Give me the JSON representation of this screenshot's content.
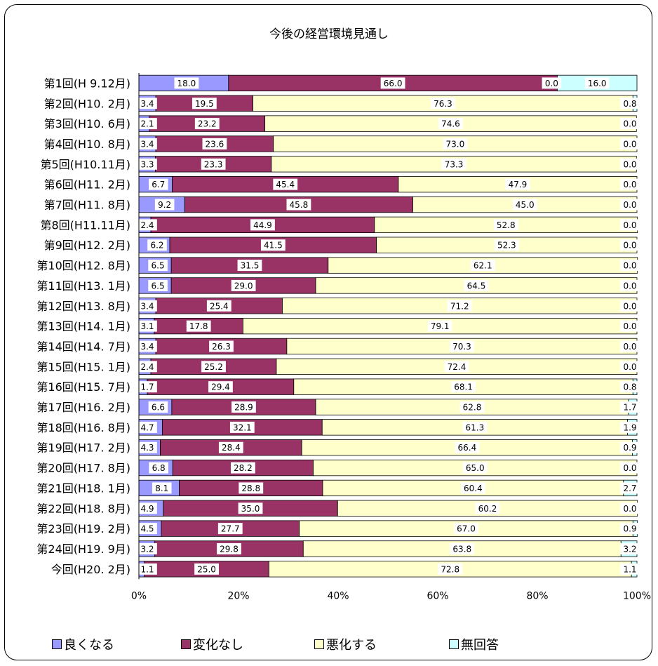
{
  "chart_data": {
    "type": "bar",
    "orientation": "horizontal",
    "stacked": "percent",
    "title": "今後の経営環境見通し",
    "categories": [
      "第1回(H 9.12月)",
      "第2回(H10. 2月)",
      "第3回(H10. 6月)",
      "第4回(H10. 8月)",
      "第5回(H10.11月)",
      "第6回(H11. 2月)",
      "第7回(H11. 8月)",
      "第8回(H11.11月)",
      "第9回(H12. 2月)",
      "第10回(H12. 8月)",
      "第11回(H13. 1月)",
      "第12回(H13. 8月)",
      "第13回(H14. 1月)",
      "第14回(H14. 7月)",
      "第15回(H15. 1月)",
      "第16回(H15. 7月)",
      "第17回(H16. 2月)",
      "第18回(H16. 8月)",
      "第19回(H17. 2月)",
      "第20回(H17. 8月)",
      "第21回(H18. 1月)",
      "第22回(H18. 8月)",
      "第23回(H19. 2月)",
      "第24回(H19. 9月)",
      "今回(H20. 2月)"
    ],
    "series": [
      {
        "name": "良くなる",
        "color": "#9999ff",
        "values": [
          18.0,
          3.4,
          2.1,
          3.4,
          3.3,
          6.7,
          9.2,
          2.4,
          6.2,
          6.5,
          6.5,
          3.4,
          3.1,
          3.4,
          2.4,
          1.7,
          6.6,
          4.7,
          4.3,
          6.8,
          8.1,
          4.9,
          4.5,
          3.2,
          1.1
        ]
      },
      {
        "name": "変化なし",
        "color": "#993366",
        "values": [
          66.0,
          19.5,
          23.2,
          23.6,
          23.3,
          45.4,
          45.8,
          44.9,
          41.5,
          31.5,
          29.0,
          25.4,
          17.8,
          26.3,
          25.2,
          29.4,
          28.9,
          32.1,
          28.4,
          28.2,
          28.8,
          35.0,
          27.7,
          29.8,
          25.0
        ]
      },
      {
        "name": "悪化する",
        "color": "#ffffcc",
        "values": [
          0.0,
          76.3,
          74.6,
          73.0,
          73.3,
          47.9,
          45.0,
          52.8,
          52.3,
          62.1,
          64.5,
          71.2,
          79.1,
          70.3,
          72.4,
          68.1,
          62.8,
          61.3,
          66.4,
          65.0,
          60.4,
          60.2,
          67.0,
          63.8,
          72.8
        ]
      },
      {
        "name": "無回答",
        "color": "#ccffff",
        "values": [
          16.0,
          0.8,
          0.0,
          0.0,
          0.0,
          0.0,
          0.0,
          0.0,
          0.0,
          0.0,
          0.0,
          0.0,
          0.0,
          0.0,
          0.0,
          0.8,
          1.7,
          1.9,
          0.9,
          0.0,
          2.7,
          0.0,
          0.9,
          3.2,
          1.1
        ]
      }
    ],
    "x_ticks": [
      "0%",
      "20%",
      "40%",
      "60%",
      "80%",
      "100%"
    ],
    "xlim": [
      0,
      100
    ],
    "legend_position": "bottom",
    "grid": false
  }
}
